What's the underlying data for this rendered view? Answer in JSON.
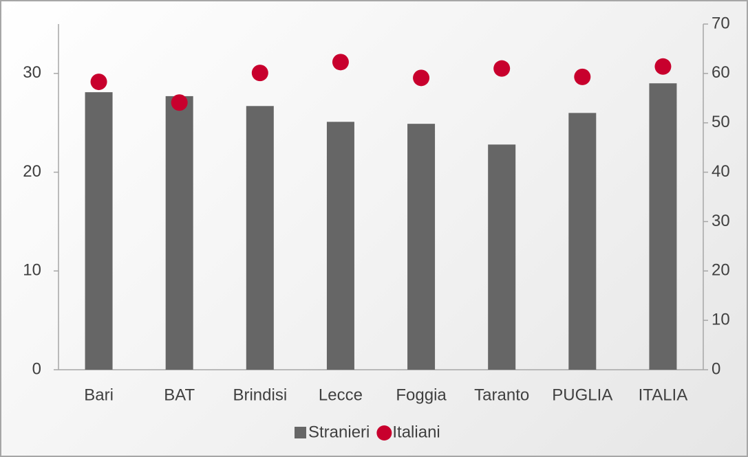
{
  "chart_data": {
    "type": "bar_dot",
    "categories": [
      "Bari",
      "BAT",
      "Brindisi",
      "Lecce",
      "Foggia",
      "Taranto",
      "PUGLIA",
      "ITALIA"
    ],
    "series": [
      {
        "name": "Stranieri",
        "color": "#666666",
        "values": [
          28.1,
          27.7,
          26.7,
          25.1,
          24.9,
          22.8,
          26.0,
          29.0
        ]
      },
      {
        "name": "Italiani",
        "color": "#c8002d",
        "axis": "y2",
        "values": [
          58.3,
          54.1,
          60.1,
          62.3,
          59.1,
          61.0,
          59.3,
          61.4
        ]
      }
    ],
    "ylim": [
      0,
      35
    ],
    "yticks": [
      0,
      10,
      20,
      30
    ],
    "y2lim": [
      0,
      70
    ],
    "y2ticks": [
      0,
      10,
      20,
      30,
      40,
      50,
      60,
      70
    ],
    "legend": "bottom"
  }
}
